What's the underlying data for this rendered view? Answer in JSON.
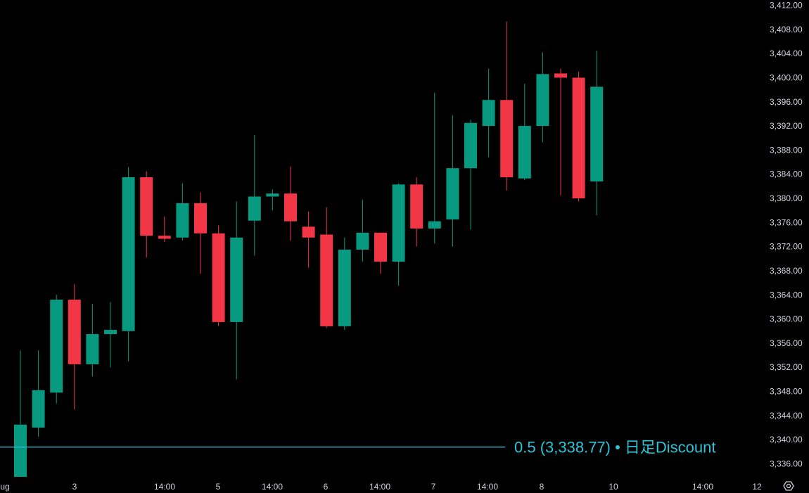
{
  "colors": {
    "background": "#000000",
    "up": "#089981",
    "down": "#f23645",
    "axis_text": "#d1d4dc",
    "line": "#2ec4d6"
  },
  "chart_data": {
    "type": "candlestick",
    "y_range": [
      3333.2,
      3413.0
    ],
    "y_ticks": [
      "3,336.00",
      "3,340.00",
      "3,344.00",
      "3,348.00",
      "3,352.00",
      "3,356.00",
      "3,360.00",
      "3,364.00",
      "3,368.00",
      "3,372.00",
      "3,376.00",
      "3,380.00",
      "3,384.00",
      "3,388.00",
      "3,392.00",
      "3,396.00",
      "3,400.00",
      "3,404.00",
      "3,408.00",
      "3,412.00"
    ],
    "x_ticks": [
      "ug",
      "3",
      "14:00",
      "5",
      "14:00",
      "6",
      "14:00",
      "7",
      "14:00",
      "8",
      "10",
      "14:00",
      "12"
    ],
    "candles": [
      {
        "o": 3333.0,
        "h": 3354.8,
        "l": 3330.0,
        "c": 3342.5
      },
      {
        "o": 3342.0,
        "h": 3354.8,
        "l": 3340.5,
        "c": 3348.2
      },
      {
        "o": 3347.8,
        "h": 3364.0,
        "l": 3346.0,
        "c": 3363.2
      },
      {
        "o": 3363.2,
        "h": 3365.8,
        "l": 3345.0,
        "c": 3352.5
      },
      {
        "o": 3352.5,
        "h": 3362.5,
        "l": 3350.5,
        "c": 3357.5
      },
      {
        "o": 3357.5,
        "h": 3362.8,
        "l": 3352.0,
        "c": 3358.2
      },
      {
        "o": 3358.0,
        "h": 3385.2,
        "l": 3353.0,
        "c": 3383.5
      },
      {
        "o": 3383.5,
        "h": 3384.5,
        "l": 3370.2,
        "c": 3373.8
      },
      {
        "o": 3373.8,
        "h": 3377.0,
        "l": 3372.8,
        "c": 3373.3
      },
      {
        "o": 3373.5,
        "h": 3382.5,
        "l": 3373.0,
        "c": 3379.2
      },
      {
        "o": 3379.2,
        "h": 3381.0,
        "l": 3367.5,
        "c": 3374.2
      },
      {
        "o": 3374.2,
        "h": 3375.5,
        "l": 3358.8,
        "c": 3359.5
      },
      {
        "o": 3359.5,
        "h": 3379.5,
        "l": 3350.0,
        "c": 3373.5
      },
      {
        "o": 3376.3,
        "h": 3390.5,
        "l": 3370.5,
        "c": 3380.3
      },
      {
        "o": 3380.3,
        "h": 3381.5,
        "l": 3378.0,
        "c": 3380.8
      },
      {
        "o": 3380.8,
        "h": 3385.3,
        "l": 3373.0,
        "c": 3376.2
      },
      {
        "o": 3375.3,
        "h": 3377.8,
        "l": 3368.5,
        "c": 3373.5
      },
      {
        "o": 3374.0,
        "h": 3378.5,
        "l": 3358.5,
        "c": 3358.8
      },
      {
        "o": 3358.8,
        "h": 3373.5,
        "l": 3358.2,
        "c": 3371.5
      },
      {
        "o": 3371.5,
        "h": 3379.8,
        "l": 3369.5,
        "c": 3374.3
      },
      {
        "o": 3374.3,
        "h": 3374.3,
        "l": 3367.5,
        "c": 3369.5
      },
      {
        "o": 3369.5,
        "h": 3382.5,
        "l": 3365.5,
        "c": 3382.3
      },
      {
        "o": 3382.3,
        "h": 3383.5,
        "l": 3372.0,
        "c": 3375.0
      },
      {
        "o": 3375.0,
        "h": 3397.5,
        "l": 3372.5,
        "c": 3376.2
      },
      {
        "o": 3376.5,
        "h": 3393.8,
        "l": 3372.0,
        "c": 3385.0
      },
      {
        "o": 3385.0,
        "h": 3393.0,
        "l": 3374.8,
        "c": 3392.5
      },
      {
        "o": 3392.0,
        "h": 3401.5,
        "l": 3386.8,
        "c": 3396.3
      },
      {
        "o": 3396.3,
        "h": 3409.3,
        "l": 3381.3,
        "c": 3383.5
      },
      {
        "o": 3383.3,
        "h": 3399.0,
        "l": 3383.0,
        "c": 3392.0
      },
      {
        "o": 3392.0,
        "h": 3404.2,
        "l": 3389.3,
        "c": 3400.6
      },
      {
        "o": 3400.7,
        "h": 3401.5,
        "l": 3380.5,
        "c": 3400.0
      },
      {
        "o": 3400.0,
        "h": 3401.0,
        "l": 3379.5,
        "c": 3380.0
      },
      {
        "o": 3382.8,
        "h": 3404.5,
        "l": 3377.2,
        "c": 3398.5
      }
    ],
    "horizontal_lines": [
      {
        "price": 3338.77,
        "label": "0.5 (3,338.77) • 日足Discount",
        "color": "#2ec4d6"
      }
    ]
  }
}
